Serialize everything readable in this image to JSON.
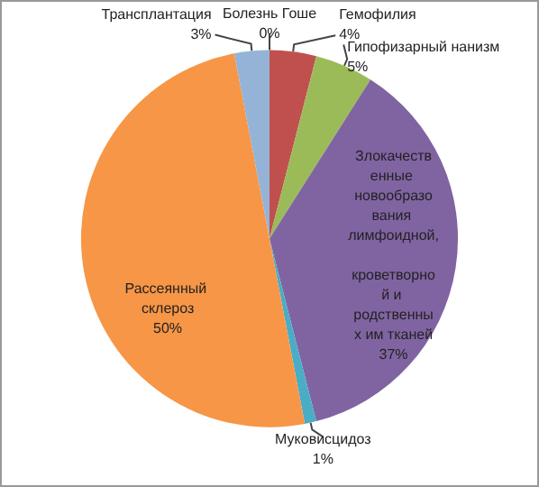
{
  "chart_data": {
    "type": "pie",
    "categories": [
      "Болезнь Гоше",
      "Гемофилия",
      "Гипофизарный нанизм",
      "Злокачественные новообразования лимфоидной, кроветворной и родственных им тканей",
      "Муковисцидоз",
      "Рассеянный склероз",
      "Трансплантация"
    ],
    "values": [
      0,
      4,
      5,
      37,
      1,
      50,
      3
    ],
    "colors": [
      "#4f81bd",
      "#c0504d",
      "#9bbb59",
      "#8064a2",
      "#4bacc6",
      "#f79646",
      "#95b3d7"
    ],
    "value_labels": [
      "0%",
      "4%",
      "5%",
      "37%",
      "1%",
      "50%",
      "3%"
    ],
    "legend": false
  }
}
